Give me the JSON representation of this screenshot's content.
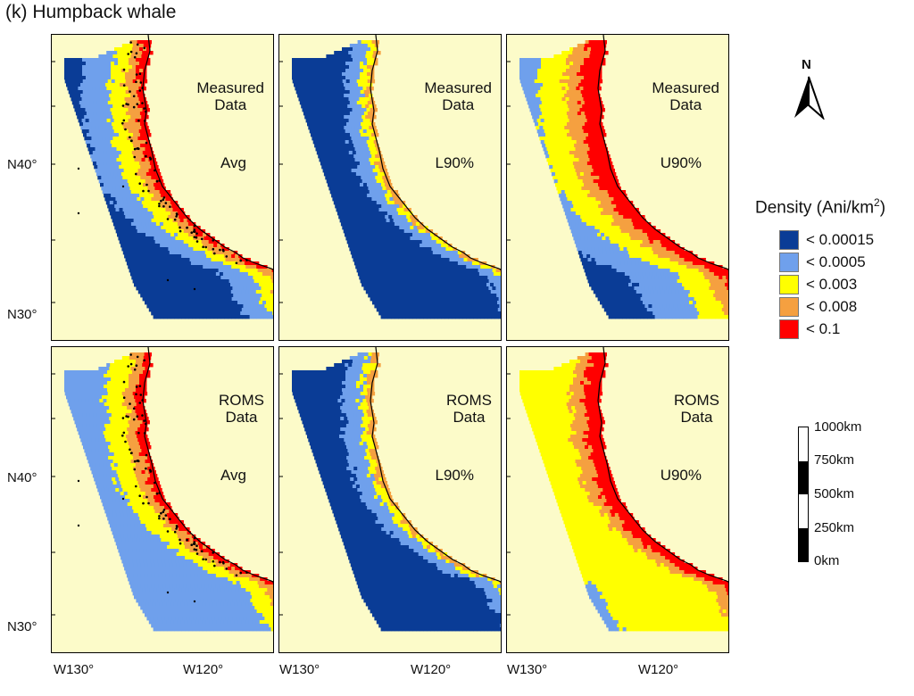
{
  "figure": {
    "title": "(k)  Humpback whale",
    "panels": [
      {
        "id": "p1",
        "label_line1": "Measured",
        "label_line2": "Data",
        "stat": "Avg",
        "pattern": "measured-avg",
        "sightings": true
      },
      {
        "id": "p2",
        "label_line1": "Measured",
        "label_line2": "Data",
        "stat": "L90%",
        "pattern": "measured-l90",
        "sightings": false
      },
      {
        "id": "p3",
        "label_line1": "Measured",
        "label_line2": "Data",
        "stat": "U90%",
        "pattern": "measured-u90",
        "sightings": false
      },
      {
        "id": "p4",
        "label_line1": "ROMS",
        "label_line2": "Data",
        "stat": "Avg",
        "pattern": "roms-avg",
        "sightings": true
      },
      {
        "id": "p5",
        "label_line1": "ROMS",
        "label_line2": "Data",
        "stat": "L90%",
        "pattern": "roms-l90",
        "sightings": false
      },
      {
        "id": "p6",
        "label_line1": "ROMS",
        "label_line2": "Data",
        "stat": "U90%",
        "pattern": "roms-u90",
        "sightings": false
      }
    ],
    "y_axis_labels": [
      "N40°",
      "N30°",
      "N40°",
      "N30°"
    ],
    "x_axis_labels": [
      "W130°",
      "W120°",
      "W130°",
      "W120°",
      "W130°",
      "W120°"
    ],
    "north_arrow": {
      "letter": "N",
      "icon": "north-arrow-icon"
    },
    "legend": {
      "title": "Density (Ani/km",
      "title_sup": "2",
      "title_end": ")",
      "items": [
        {
          "label": "< 0.00015",
          "color": "#0a3c96"
        },
        {
          "label": "< 0.0005",
          "color": "#6fa0ec"
        },
        {
          "label": "< 0.003",
          "color": "#ffff00"
        },
        {
          "label": "< 0.008",
          "color": "#f5a040"
        },
        {
          "label": "< 0.1",
          "color": "#ff0000"
        }
      ]
    },
    "scale_bar": {
      "labels": [
        "1000km",
        "750km",
        "500km",
        "250km",
        "0km"
      ]
    },
    "colors": {
      "land": "#fcfbc9",
      "coast": "#000000",
      "sighting": "#000000"
    }
  }
}
